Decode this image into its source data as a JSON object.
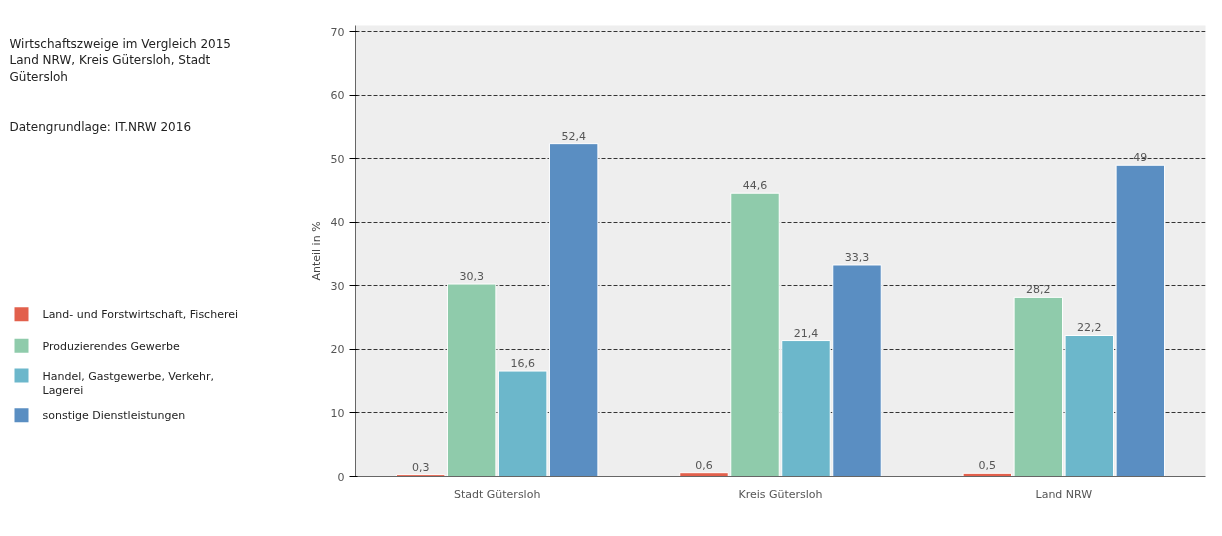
{
  "chart_data": {
    "type": "bar",
    "title": "Wirtschaftszweige im Vergleich 2015",
    "subtitle": "Land NRW, Kreis Gütersloh, Stadt\nGütersloh",
    "annotations": [
      "Datengrundlage: IT.NRW 2016"
    ],
    "ylabel": "Anteil in %",
    "categories": [
      "Stadt Gütersloh",
      "Kreis Gütersloh",
      "Land NRW"
    ],
    "series": [
      {
        "name": "Land- und Forstwirtschaft, Fischerei",
        "color": "#e2604c",
        "values": [
          0.3,
          0.6,
          0.5
        ],
        "value_labels": [
          "0,3",
          "0,6",
          "0,5"
        ]
      },
      {
        "name": "Produzierendes Gewerbe",
        "color": "#8fcbab",
        "values": [
          30.3,
          44.6,
          28.2
        ],
        "value_labels": [
          "30,3",
          "44,6",
          "28,2"
        ]
      },
      {
        "name": "Handel, Gastgewerbe, Verkehr,\nLagerei",
        "color": "#6cb7cb",
        "values": [
          16.6,
          21.4,
          22.2
        ],
        "value_labels": [
          "16,6",
          "21,4",
          "22,2"
        ]
      },
      {
        "name": "sonstige Dienstleistungen",
        "color": "#5a8ec2",
        "values": [
          52.4,
          33.3,
          49
        ],
        "value_labels": [
          "52,4",
          "33,3",
          "49"
        ]
      }
    ],
    "ylim": [
      0,
      71
    ],
    "yticks": [
      0,
      10,
      20,
      30,
      40,
      50,
      60,
      70
    ],
    "grid": "y",
    "legend": "left"
  }
}
